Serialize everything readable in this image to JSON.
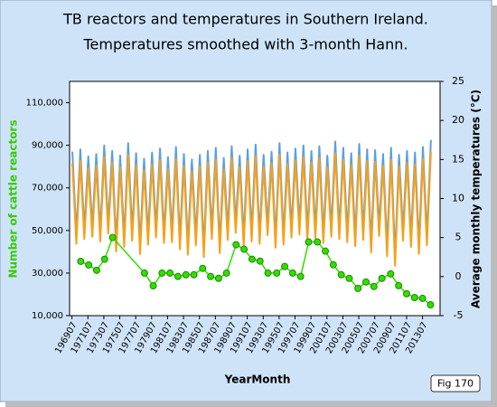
{
  "chart_data": {
    "type": "line",
    "title": "TB reactors and temperatures in Southern Ireland.",
    "subtitle": "Temperatures smoothed with 3-month Hann.",
    "x_label": "YearMonth",
    "y_label": "Number of cattle reactors",
    "y2_label": "Average monthly temperatures (°C)",
    "figure_label": "Fig 170",
    "xlim": [
      1969.2,
      2015.7
    ],
    "xticks": [
      {
        "value": 1969.5,
        "label": "196907"
      },
      {
        "value": 1971.5,
        "label": "197107"
      },
      {
        "value": 1973.5,
        "label": "197307"
      },
      {
        "value": 1975.5,
        "label": "197507"
      },
      {
        "value": 1977.5,
        "label": "197707"
      },
      {
        "value": 1979.5,
        "label": "197907"
      },
      {
        "value": 1981.5,
        "label": "198107"
      },
      {
        "value": 1983.5,
        "label": "198307"
      },
      {
        "value": 1985.5,
        "label": "198507"
      },
      {
        "value": 1987.5,
        "label": "198707"
      },
      {
        "value": 1989.5,
        "label": "198907"
      },
      {
        "value": 1991.5,
        "label": "199107"
      },
      {
        "value": 1993.5,
        "label": "199307"
      },
      {
        "value": 1995.5,
        "label": "199507"
      },
      {
        "value": 1997.5,
        "label": "199707"
      },
      {
        "value": 1999.5,
        "label": "199907"
      },
      {
        "value": 2001.5,
        "label": "200107"
      },
      {
        "value": 2003.5,
        "label": "200307"
      },
      {
        "value": 2005.5,
        "label": "200507"
      },
      {
        "value": 2007.5,
        "label": "200707"
      },
      {
        "value": 2009.5,
        "label": "200907"
      },
      {
        "value": 2011.5,
        "label": "201107"
      },
      {
        "value": 2013.5,
        "label": "201307"
      }
    ],
    "ylim": [
      10000,
      120000
    ],
    "yticks": [
      {
        "value": 10000,
        "label": "10,000"
      },
      {
        "value": 30000,
        "label": "30,000"
      },
      {
        "value": 50000,
        "label": "50,000"
      },
      {
        "value": 70000,
        "label": "70,000"
      },
      {
        "value": 90000,
        "label": "90,000"
      },
      {
        "value": 110000,
        "label": "110,000"
      }
    ],
    "y2lim": [
      -5,
      25
    ],
    "y2ticks": [
      -5,
      0,
      5,
      10,
      15,
      20,
      25
    ],
    "series": [
      {
        "color": "#5aa0dc",
        "axis": "y2",
        "x": [
          1969.55,
          1970.05,
          1970.55,
          1971.05,
          1971.55,
          1972.05,
          1972.55,
          1973.05,
          1973.55,
          1974.05,
          1974.55,
          1975.05,
          1975.55,
          1976.05,
          1976.55,
          1977.05,
          1977.55,
          1978.05,
          1978.55,
          1979.05,
          1979.55,
          1980.05,
          1980.55,
          1981.05,
          1981.55,
          1982.05,
          1982.55,
          1983.05,
          1983.55,
          1984.05,
          1984.55,
          1985.05,
          1985.55,
          1986.05,
          1986.55,
          1987.05,
          1987.55,
          1988.05,
          1988.55,
          1989.05,
          1989.55,
          1990.05,
          1990.55,
          1991.05,
          1991.55,
          1992.05,
          1992.55,
          1993.05,
          1993.55,
          1994.05,
          1994.55,
          1995.05,
          1995.55,
          1996.05,
          1996.55,
          1997.05,
          1997.55,
          1998.05,
          1998.55,
          1999.05,
          1999.55,
          2000.05,
          2000.55,
          2001.05,
          2001.55,
          2002.05,
          2002.55,
          2003.05,
          2003.55,
          2004.05,
          2004.55,
          2005.05,
          2005.55,
          2006.05,
          2006.55,
          2007.05,
          2007.55,
          2008.05,
          2008.55,
          2009.05,
          2009.55,
          2010.05,
          2010.55,
          2011.05,
          2011.55,
          2012.05,
          2012.55,
          2013.05,
          2013.55,
          2014.05,
          2014.55
        ],
        "values": [
          16.0,
          5.4,
          16.3,
          6.0,
          15.4,
          6.3,
          15.7,
          5.7,
          16.8,
          6.7,
          16.1,
          4.4,
          15.5,
          5.0,
          17.1,
          5.8,
          15.8,
          4.1,
          15.1,
          5.3,
          15.9,
          6.2,
          16.4,
          5.5,
          15.3,
          5.6,
          16.6,
          4.7,
          15.7,
          4.0,
          15.0,
          5.2,
          15.6,
          3.7,
          16.1,
          6.0,
          16.5,
          4.2,
          15.2,
          5.9,
          16.7,
          6.8,
          15.5,
          5.1,
          16.3,
          5.7,
          16.9,
          5.4,
          15.6,
          6.5,
          16.0,
          4.9,
          17.1,
          5.3,
          15.9,
          6.2,
          16.4,
          6.6,
          16.8,
          5.8,
          16.1,
          6.1,
          16.7,
          5.5,
          15.5,
          6.3,
          17.3,
          6.0,
          16.5,
          5.6,
          15.8,
          5.1,
          17.0,
          5.9,
          16.3,
          4.3,
          16.2,
          6.4,
          15.7,
          3.8,
          16.5,
          2.6,
          15.6,
          5.8,
          16.1,
          5.0,
          15.9,
          4.1,
          16.6,
          5.2,
          17.5
        ]
      },
      {
        "color": "#f5a01a",
        "axis": "y2",
        "x": [
          1969.55,
          1970.05,
          1970.55,
          1971.05,
          1971.55,
          1972.05,
          1972.55,
          1973.05,
          1973.55,
          1974.05,
          1974.55,
          1975.05,
          1975.55,
          1976.05,
          1976.55,
          1977.05,
          1977.55,
          1978.05,
          1978.55,
          1979.05,
          1979.55,
          1980.05,
          1980.55,
          1981.05,
          1981.55,
          1982.05,
          1982.55,
          1983.05,
          1983.55,
          1984.05,
          1984.55,
          1985.05,
          1985.55,
          1986.05,
          1986.55,
          1987.05,
          1987.55,
          1988.05,
          1988.55,
          1989.05,
          1989.55,
          1990.05,
          1990.55,
          1991.05,
          1991.55,
          1992.05,
          1992.55,
          1993.05,
          1993.55,
          1994.05,
          1994.55,
          1995.05,
          1995.55,
          1996.05,
          1996.55,
          1997.05,
          1997.55,
          1998.05,
          1998.55,
          1999.05,
          1999.55,
          2000.05,
          2000.55,
          2001.05,
          2001.55,
          2002.05,
          2002.55,
          2003.05,
          2003.55,
          2004.05,
          2004.55,
          2005.05,
          2005.55,
          2006.05,
          2006.55,
          2007.05,
          2007.55,
          2008.05,
          2008.55,
          2009.05,
          2009.55,
          2010.05,
          2010.55,
          2011.05,
          2011.55,
          2012.05,
          2012.55,
          2013.05,
          2013.55,
          2014.05,
          2014.55
        ],
        "values": [
          14.5,
          4.2,
          14.8,
          4.8,
          13.9,
          5.1,
          14.2,
          4.5,
          15.3,
          5.5,
          14.6,
          3.2,
          14.0,
          3.8,
          15.6,
          4.6,
          14.3,
          2.9,
          13.6,
          4.1,
          14.4,
          5.0,
          14.9,
          4.3,
          13.8,
          4.4,
          15.1,
          3.5,
          14.2,
          2.8,
          13.5,
          4.0,
          14.1,
          2.5,
          14.6,
          4.8,
          15.0,
          3.0,
          13.7,
          4.7,
          15.2,
          5.6,
          14.0,
          3.9,
          14.8,
          4.5,
          15.4,
          4.2,
          14.1,
          5.3,
          14.5,
          3.7,
          15.6,
          4.1,
          14.4,
          5.0,
          14.9,
          5.4,
          15.3,
          4.6,
          14.6,
          4.9,
          15.2,
          4.3,
          14.0,
          5.1,
          15.8,
          4.8,
          15.0,
          4.4,
          14.3,
          3.9,
          15.5,
          4.7,
          14.8,
          3.1,
          14.7,
          5.2,
          14.2,
          2.6,
          15.0,
          1.4,
          14.1,
          4.6,
          14.6,
          3.8,
          14.4,
          2.9,
          15.1,
          4.0,
          16.0
        ]
      },
      {
        "color": "#33dd00",
        "axis": "y",
        "marker": "circle",
        "x": [
          1970.6,
          1971.6,
          1972.6,
          1973.6,
          1974.6,
          1978.6,
          1979.7,
          1980.8,
          1981.8,
          1982.8,
          1983.8,
          1984.8,
          1985.9,
          1986.9,
          1987.9,
          1988.9,
          1990.1,
          1991.1,
          1992.1,
          1993.1,
          1994.1,
          1995.2,
          1996.2,
          1997.2,
          1998.2,
          1999.2,
          2000.3,
          2001.3,
          2002.3,
          2003.3,
          2004.3,
          2005.4,
          2006.4,
          2007.4,
          2008.4,
          2009.5,
          2010.5,
          2011.5,
          2012.5,
          2013.5,
          2014.5
        ],
        "values": [
          35500,
          33800,
          31300,
          36500,
          46700,
          30000,
          24000,
          30000,
          30000,
          28400,
          29200,
          29200,
          32200,
          28400,
          27500,
          30000,
          43300,
          41200,
          36500,
          35600,
          30000,
          30000,
          33100,
          30000,
          28400,
          44600,
          44600,
          40300,
          33900,
          29200,
          27500,
          22800,
          25800,
          23700,
          27500,
          29600,
          24100,
          20300,
          18500,
          18100,
          15100
        ]
      }
    ]
  }
}
